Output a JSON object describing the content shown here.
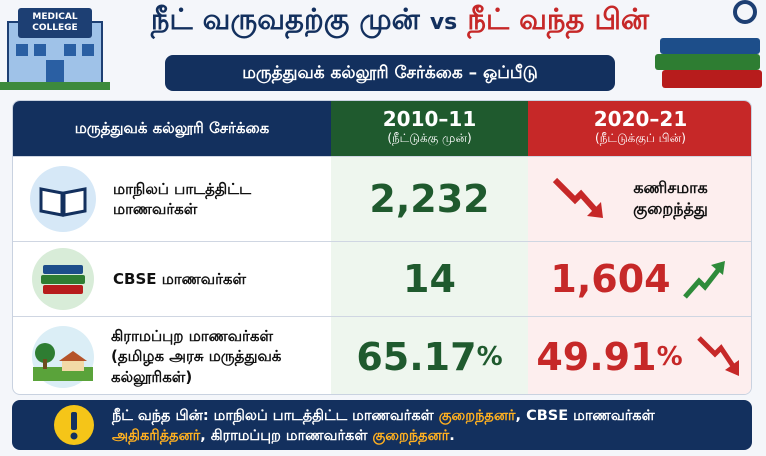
{
  "header": {
    "sign": "MEDICAL COLLEGE",
    "title_before": "நீட் வருவதற்கு முன்",
    "title_vs": "vs",
    "title_after": "நீட் வந்த பின்",
    "subtitle": "மருத்துவக் கல்லூரி சேர்க்கை – ஒப்பீடு"
  },
  "table": {
    "columns": [
      {
        "title": "மருத்துவக் கல்லூரி சேர்க்கை"
      },
      {
        "title": "2010–11",
        "note": "(நீட்டுக்கு முன்)"
      },
      {
        "title": "2020–21",
        "note": "(நீட்டுக்குப் பின்)"
      }
    ],
    "rows": [
      {
        "label": "மாநிலப் பாடத்திட்ட மாணவர்கள்",
        "before": "2,232",
        "after": "கணிசமாக குறைந்த்து"
      },
      {
        "label": "CBSE மாணவர்கள்",
        "before": "14",
        "after": "1,604"
      },
      {
        "label": "கிராமப்புற மாணவர்கள்",
        "sublabel": "(தமிழக அரசு மருத்துவக் கல்லூரிகள்)",
        "before": "65.17",
        "after": "49.91",
        "unit": "%"
      }
    ]
  },
  "footer": {
    "parts": [
      "நீட் வந்த பின்: மாநிலப் பாடத்திட்ட மாணவர்கள் ",
      "குறைந்தனர்",
      ", CBSE மாணவர்கள் ",
      "அதிகரித்தனர்",
      ", கிராமப்புற மாணவர்கள் ",
      "குறைந்தனர்",
      "."
    ]
  }
}
